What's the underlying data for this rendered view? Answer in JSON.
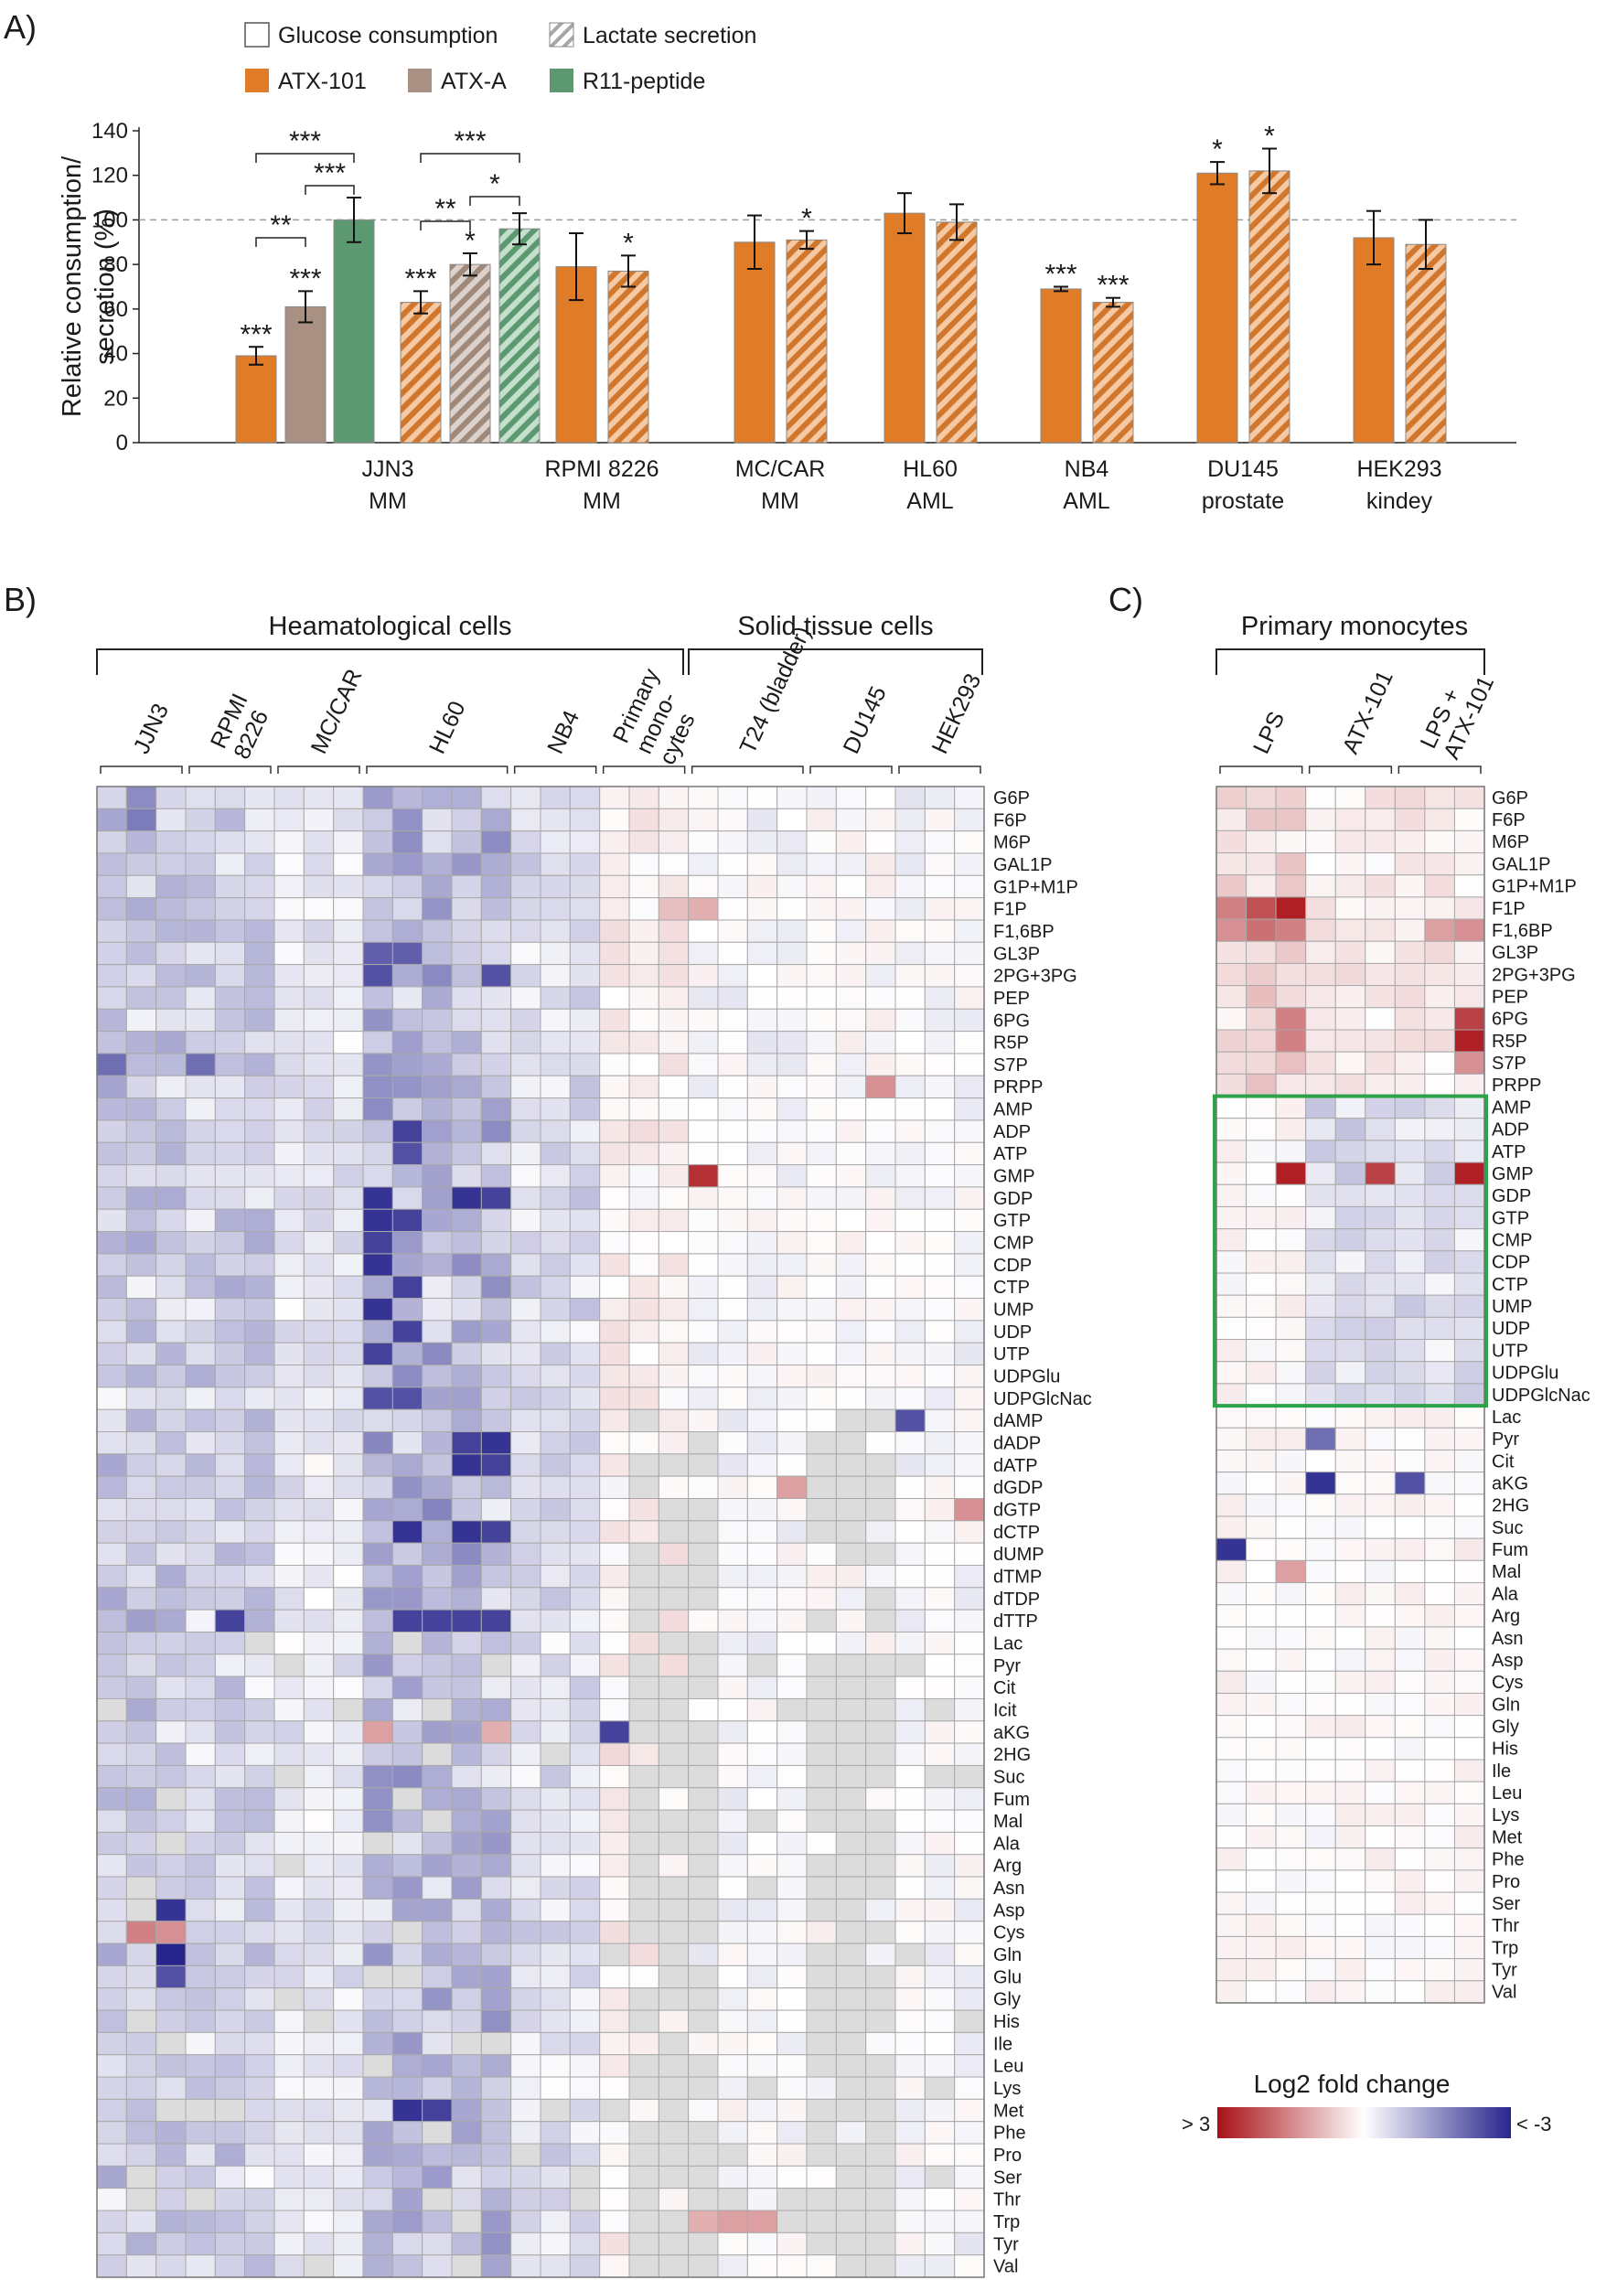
{
  "figure": {
    "panel_labels": {
      "a": "A)",
      "b": "B)",
      "c": "C)"
    },
    "colors": {
      "atx101": "#e07b27",
      "atxa": "#a89182",
      "r11": "#5c9970",
      "reference_line": "#9a9a9a",
      "heat_high": "#a81016",
      "heat_mid": "#ffffff",
      "heat_low": "#27258c",
      "missing": "#dcdcdc",
      "highlight_box": "#2ca249"
    }
  },
  "chart_data": [
    {
      "type": "bar",
      "panel": "A)",
      "ylabel": "Relative consumption/ secretion (%)",
      "ylabel_lines": [
        "Relative consumption/",
        "secretion (%)"
      ],
      "ylim": [
        0,
        140
      ],
      "yticks": [
        0,
        20,
        40,
        60,
        80,
        100,
        120,
        140
      ],
      "reference_line": 100,
      "legend": {
        "pattern": [
          "Glucose consumption",
          "Lactate secretion"
        ],
        "color": [
          "ATX-101",
          "ATX-A",
          "R11-peptide"
        ]
      },
      "categories": [
        {
          "name": "JJN3",
          "sub": "MM"
        },
        {
          "name": "RPMI 8226",
          "sub": "MM"
        },
        {
          "name": "MC/CAR",
          "sub": "MM"
        },
        {
          "name": "HL60",
          "sub": "AML"
        },
        {
          "name": "NB4",
          "sub": "AML"
        },
        {
          "name": "DU145",
          "sub": "prostate"
        },
        {
          "name": "HEK293",
          "sub": "kindey"
        }
      ],
      "bars": [
        {
          "category": "JJN3",
          "treatment": "ATX-101",
          "measure": "Glucose consumption",
          "value": 39,
          "error": 4,
          "sig": "***"
        },
        {
          "category": "JJN3",
          "treatment": "ATX-A",
          "measure": "Glucose consumption",
          "value": 61,
          "error": 7,
          "sig": "***"
        },
        {
          "category": "JJN3",
          "treatment": "R11-peptide",
          "measure": "Glucose consumption",
          "value": 100,
          "error": 10,
          "sig": ""
        },
        {
          "category": "JJN3",
          "treatment": "ATX-101",
          "measure": "Lactate secretion",
          "value": 63,
          "error": 5,
          "sig": "***"
        },
        {
          "category": "JJN3",
          "treatment": "ATX-A",
          "measure": "Lactate secretion",
          "value": 80,
          "error": 5,
          "sig": "*"
        },
        {
          "category": "JJN3",
          "treatment": "R11-peptide",
          "measure": "Lactate secretion",
          "value": 96,
          "error": 7,
          "sig": ""
        },
        {
          "category": "RPMI 8226",
          "treatment": "ATX-101",
          "measure": "Glucose consumption",
          "value": 79,
          "error": 15,
          "sig": ""
        },
        {
          "category": "RPMI 8226",
          "treatment": "ATX-101",
          "measure": "Lactate secretion",
          "value": 77,
          "error": 7,
          "sig": "*"
        },
        {
          "category": "MC/CAR",
          "treatment": "ATX-101",
          "measure": "Glucose consumption",
          "value": 90,
          "error": 12,
          "sig": ""
        },
        {
          "category": "MC/CAR",
          "treatment": "ATX-101",
          "measure": "Lactate secretion",
          "value": 91,
          "error": 4,
          "sig": "*"
        },
        {
          "category": "HL60",
          "treatment": "ATX-101",
          "measure": "Glucose consumption",
          "value": 103,
          "error": 9,
          "sig": ""
        },
        {
          "category": "HL60",
          "treatment": "ATX-101",
          "measure": "Lactate secretion",
          "value": 99,
          "error": 8,
          "sig": ""
        },
        {
          "category": "NB4",
          "treatment": "ATX-101",
          "measure": "Glucose consumption",
          "value": 69,
          "error": 1,
          "sig": "***"
        },
        {
          "category": "NB4",
          "treatment": "ATX-101",
          "measure": "Lactate secretion",
          "value": 63,
          "error": 2,
          "sig": "***"
        },
        {
          "category": "DU145",
          "treatment": "ATX-101",
          "measure": "Glucose consumption",
          "value": 121,
          "error": 5,
          "sig": "*"
        },
        {
          "category": "DU145",
          "treatment": "ATX-101",
          "measure": "Lactate secretion",
          "value": 122,
          "error": 10,
          "sig": "*"
        },
        {
          "category": "HEK293",
          "treatment": "ATX-101",
          "measure": "Glucose consumption",
          "value": 92,
          "error": 12,
          "sig": ""
        },
        {
          "category": "HEK293",
          "treatment": "ATX-101",
          "measure": "Lactate secretion",
          "value": 89,
          "error": 11,
          "sig": ""
        }
      ],
      "comparisons": [
        {
          "from": 0,
          "to": 2,
          "label": "***"
        },
        {
          "from": 0,
          "to": 1,
          "label": "**"
        },
        {
          "from": 1,
          "to": 2,
          "label": "***"
        },
        {
          "from": 3,
          "to": 5,
          "label": "***"
        },
        {
          "from": 3,
          "to": 4,
          "label": "**"
        },
        {
          "from": 4,
          "to": 5,
          "label": "*"
        }
      ]
    },
    {
      "type": "heatmap",
      "panel": "B)",
      "scale": "Log2 fold change",
      "range": [
        -3,
        3
      ],
      "groups": [
        {
          "label": "Heamatological cells",
          "from": 0,
          "to": 6
        },
        {
          "label": "Solid tissue cells",
          "from": 7,
          "to": 9
        }
      ],
      "cell_lines": [
        {
          "label": "JJN3",
          "cols": 3
        },
        {
          "label": "RPMI\n8226",
          "cols": 3
        },
        {
          "label": "MC/CAR",
          "cols": 3
        },
        {
          "label": "HL60",
          "cols": 5
        },
        {
          "label": "NB4",
          "cols": 3
        },
        {
          "label": "Primary\nmono-\ncytes",
          "cols": 3
        },
        {
          "label": "T24 (bladder)",
          "cols": 4
        },
        {
          "label": "DU145",
          "cols": 3
        },
        {
          "label": "HEK293",
          "cols": 3
        }
      ],
      "metabolites": [
        "G6P",
        "F6P",
        "M6P",
        "GAL1P",
        "G1P+M1P",
        "F1P",
        "F1,6BP",
        "GL3P",
        "2PG+3PG",
        "PEP",
        "6PG",
        "R5P",
        "S7P",
        "PRPP",
        "AMP",
        "ADP",
        "ATP",
        "GMP",
        "GDP",
        "GTP",
        "CMP",
        "CDP",
        "CTP",
        "UMP",
        "UDP",
        "UTP",
        "UDPGlu",
        "UDPGlcNac",
        "dAMP",
        "dADP",
        "dATP",
        "dGDP",
        "dGTP",
        "dCTP",
        "dUMP",
        "dTMP",
        "dTDP",
        "dTTP",
        "Lac",
        "Pyr",
        "Cit",
        "Icit",
        "aKG",
        "2HG",
        "Suc",
        "Fum",
        "Mal",
        "Ala",
        "Arg",
        "Asn",
        "Asp",
        "Cys",
        "Gln",
        "Glu",
        "Gly",
        "His",
        "Ile",
        "Leu",
        "Lys",
        "Met",
        "Phe",
        "Pro",
        "Ser",
        "Thr",
        "Trp",
        "Tyr",
        "Val"
      ],
      "block_profile": {
        "JJN3": -0.9,
        "RPMI\n8226": -0.8,
        "MC/CAR": -0.4,
        "HL60": -1.2,
        "NB4": -0.6,
        "Primary\nmono-\ncytes": 0.2,
        "T24 (bladder)": -0.1,
        "DU145": 0.0,
        "HEK293": -0.1
      },
      "strong_cells": [
        {
          "row": "G6P",
          "col": 1,
          "v": -1.6
        },
        {
          "row": "F6P",
          "col": 1,
          "v": -1.8
        },
        {
          "row": "F1P",
          "col": 19,
          "v": 0.8
        },
        {
          "row": "F1P",
          "col": 20,
          "v": 1.0
        },
        {
          "row": "GL3P",
          "col": 9,
          "v": -2.2
        },
        {
          "row": "GL3P",
          "col": 10,
          "v": -2.2
        },
        {
          "row": "2PG+3PG",
          "col": 9,
          "v": -2.4
        },
        {
          "row": "2PG+3PG",
          "col": 13,
          "v": -2.4
        },
        {
          "row": "S7P",
          "col": 0,
          "v": -2.0
        },
        {
          "row": "S7P",
          "col": 3,
          "v": -2.0
        },
        {
          "row": "PRPP",
          "col": 26,
          "v": 1.4
        },
        {
          "row": "ADP",
          "col": 10,
          "v": -2.6
        },
        {
          "row": "ATP",
          "col": 10,
          "v": -2.4
        },
        {
          "row": "GMP",
          "col": 20,
          "v": 2.6
        },
        {
          "row": "GDP",
          "col": 9,
          "v": -2.8
        },
        {
          "row": "GDP",
          "col": 12,
          "v": -2.8
        },
        {
          "row": "GDP",
          "col": 13,
          "v": -2.6
        },
        {
          "row": "GTP",
          "col": 9,
          "v": -2.8
        },
        {
          "row": "GTP",
          "col": 10,
          "v": -2.6
        },
        {
          "row": "CMP",
          "col": 9,
          "v": -2.6
        },
        {
          "row": "CDP",
          "col": 9,
          "v": -2.8
        },
        {
          "row": "CTP",
          "col": 10,
          "v": -2.6
        },
        {
          "row": "UMP",
          "col": 9,
          "v": -2.8
        },
        {
          "row": "UDP",
          "col": 10,
          "v": -2.6
        },
        {
          "row": "UTP",
          "col": 9,
          "v": -2.6
        },
        {
          "row": "UDPGlcNac",
          "col": 9,
          "v": -2.4
        },
        {
          "row": "UDPGlcNac",
          "col": 10,
          "v": -2.4
        },
        {
          "row": "dAMP",
          "col": 27,
          "v": -2.4
        },
        {
          "row": "dADP",
          "col": 12,
          "v": -2.6
        },
        {
          "row": "dADP",
          "col": 13,
          "v": -2.8
        },
        {
          "row": "dATP",
          "col": 12,
          "v": -2.8
        },
        {
          "row": "dATP",
          "col": 13,
          "v": -2.6
        },
        {
          "row": "dGDP",
          "col": 23,
          "v": 1.2
        },
        {
          "row": "dGTP",
          "col": 29,
          "v": 1.4
        },
        {
          "row": "dCTP",
          "col": 10,
          "v": -2.8
        },
        {
          "row": "dCTP",
          "col": 12,
          "v": -2.8
        },
        {
          "row": "dCTP",
          "col": 13,
          "v": -2.6
        },
        {
          "row": "dTTP",
          "col": 4,
          "v": -2.6
        },
        {
          "row": "dTTP",
          "col": 10,
          "v": -2.6
        },
        {
          "row": "dTTP",
          "col": 11,
          "v": -2.6
        },
        {
          "row": "dTTP",
          "col": 12,
          "v": -2.6
        },
        {
          "row": "dTTP",
          "col": 13,
          "v": -2.6
        },
        {
          "row": "aKG",
          "col": 9,
          "v": 1.2
        },
        {
          "row": "aKG",
          "col": 13,
          "v": 1.0
        },
        {
          "row": "aKG",
          "col": 17,
          "v": -2.6
        },
        {
          "row": "Asp",
          "col": 2,
          "v": -2.8
        },
        {
          "row": "Cys",
          "col": 1,
          "v": 1.6
        },
        {
          "row": "Cys",
          "col": 2,
          "v": 1.4
        },
        {
          "row": "Gln",
          "col": 2,
          "v": -3.0
        },
        {
          "row": "Glu",
          "col": 2,
          "v": -2.4
        },
        {
          "row": "Met",
          "col": 10,
          "v": -2.8
        },
        {
          "row": "Met",
          "col": 11,
          "v": -2.6
        },
        {
          "row": "Trp",
          "col": 20,
          "v": 1.0
        },
        {
          "row": "Trp",
          "col": 21,
          "v": 1.2
        },
        {
          "row": "Trp",
          "col": 22,
          "v": 1.2
        }
      ]
    },
    {
      "type": "heatmap",
      "panel": "C)",
      "title": "Primary monocytes",
      "scale": "Log2 fold change",
      "range": [
        -3,
        3
      ],
      "treatments": [
        {
          "label": "LPS",
          "cols": 3
        },
        {
          "label": "ATX-101",
          "cols": 3
        },
        {
          "label": "LPS +\nATX-101",
          "cols": 3
        }
      ],
      "metabolites": [
        "G6P",
        "F6P",
        "M6P",
        "GAL1P",
        "G1P+M1P",
        "F1P",
        "F1,6BP",
        "GL3P",
        "2PG+3PG",
        "PEP",
        "6PG",
        "R5P",
        "S7P",
        "PRPP",
        "AMP",
        "ADP",
        "ATP",
        "GMP",
        "GDP",
        "GTP",
        "CMP",
        "CDP",
        "CTP",
        "UMP",
        "UDP",
        "UTP",
        "UDPGlu",
        "UDPGlcNac",
        "Lac",
        "Pyr",
        "Cit",
        "aKG",
        "2HG",
        "Suc",
        "Fum",
        "Mal",
        "Ala",
        "Arg",
        "Asn",
        "Asp",
        "Cys",
        "Gln",
        "Gly",
        "His",
        "Ile",
        "Leu",
        "Lys",
        "Met",
        "Phe",
        "Pro",
        "Ser",
        "Thr",
        "Trp",
        "Tyr",
        "Val"
      ],
      "highlight_rows": [
        "AMP",
        "UDPGlcNac"
      ],
      "strong_cells": [
        {
          "row": "F1P",
          "col": 0,
          "v": 1.6
        },
        {
          "row": "F1P",
          "col": 1,
          "v": 2.2
        },
        {
          "row": "F1P",
          "col": 2,
          "v": 2.8
        },
        {
          "row": "F1,6BP",
          "col": 0,
          "v": 1.4
        },
        {
          "row": "F1,6BP",
          "col": 1,
          "v": 1.8
        },
        {
          "row": "F1,6BP",
          "col": 2,
          "v": 1.6
        },
        {
          "row": "F1,6BP",
          "col": 7,
          "v": 1.2
        },
        {
          "row": "F1,6BP",
          "col": 8,
          "v": 1.4
        },
        {
          "row": "6PG",
          "col": 2,
          "v": 1.6
        },
        {
          "row": "6PG",
          "col": 8,
          "v": 2.4
        },
        {
          "row": "R5P",
          "col": 2,
          "v": 1.6
        },
        {
          "row": "R5P",
          "col": 8,
          "v": 2.8
        },
        {
          "row": "S7P",
          "col": 8,
          "v": 1.4
        },
        {
          "row": "GMP",
          "col": 2,
          "v": 2.8
        },
        {
          "row": "GMP",
          "col": 5,
          "v": 2.4
        },
        {
          "row": "GMP",
          "col": 8,
          "v": 2.8
        },
        {
          "row": "Pyr",
          "col": 3,
          "v": -2.0
        },
        {
          "row": "aKG",
          "col": 3,
          "v": -2.8
        },
        {
          "row": "aKG",
          "col": 6,
          "v": -2.4
        },
        {
          "row": "Fum",
          "col": 0,
          "v": -2.8
        },
        {
          "row": "Mal",
          "col": 2,
          "v": 1.2
        }
      ]
    }
  ],
  "colorbar": {
    "title": "Log2 fold change",
    "high_label": "> 3",
    "low_label": "< -3"
  }
}
